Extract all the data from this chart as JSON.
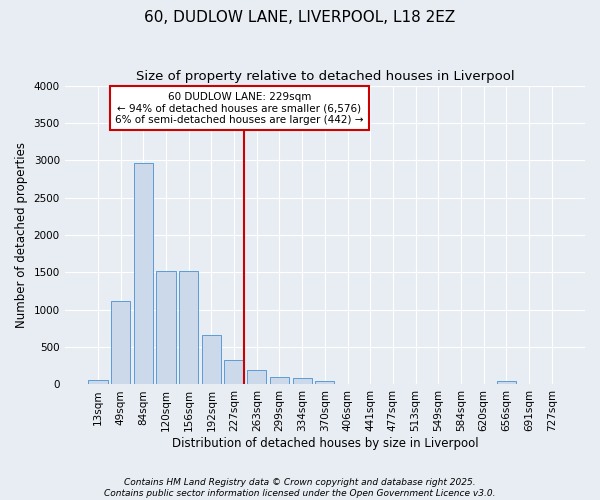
{
  "title": "60, DUDLOW LANE, LIVERPOOL, L18 2EZ",
  "subtitle": "Size of property relative to detached houses in Liverpool",
  "xlabel": "Distribution of detached houses by size in Liverpool",
  "ylabel": "Number of detached properties",
  "categories": [
    "13sqm",
    "49sqm",
    "84sqm",
    "120sqm",
    "156sqm",
    "192sqm",
    "227sqm",
    "263sqm",
    "299sqm",
    "334sqm",
    "370sqm",
    "406sqm",
    "441sqm",
    "477sqm",
    "513sqm",
    "549sqm",
    "584sqm",
    "620sqm",
    "656sqm",
    "691sqm",
    "727sqm"
  ],
  "values": [
    55,
    1120,
    2960,
    1520,
    1520,
    660,
    330,
    190,
    100,
    80,
    50,
    10,
    0,
    0,
    0,
    0,
    0,
    0,
    50,
    0,
    0
  ],
  "bar_color": "#ccd9ea",
  "bar_edge_color": "#5b9bd5",
  "background_color": "#e8edf4",
  "grid_color": "#ffffff",
  "property_bin_index": 6,
  "property_label": "60 DUDLOW LANE: 229sqm",
  "annotation_line1": "← 94% of detached houses are smaller (6,576)",
  "annotation_line2": "6% of semi-detached houses are larger (442) →",
  "vline_color": "#cc0000",
  "annotation_box_color": "#cc0000",
  "footnote1": "Contains HM Land Registry data © Crown copyright and database right 2025.",
  "footnote2": "Contains public sector information licensed under the Open Government Licence v3.0.",
  "ylim": [
    0,
    4000
  ],
  "yticks": [
    0,
    500,
    1000,
    1500,
    2000,
    2500,
    3000,
    3500,
    4000
  ],
  "title_fontsize": 11,
  "subtitle_fontsize": 9.5,
  "axis_label_fontsize": 8.5,
  "tick_fontsize": 7.5,
  "annotation_fontsize": 7.5,
  "footnote_fontsize": 6.5
}
